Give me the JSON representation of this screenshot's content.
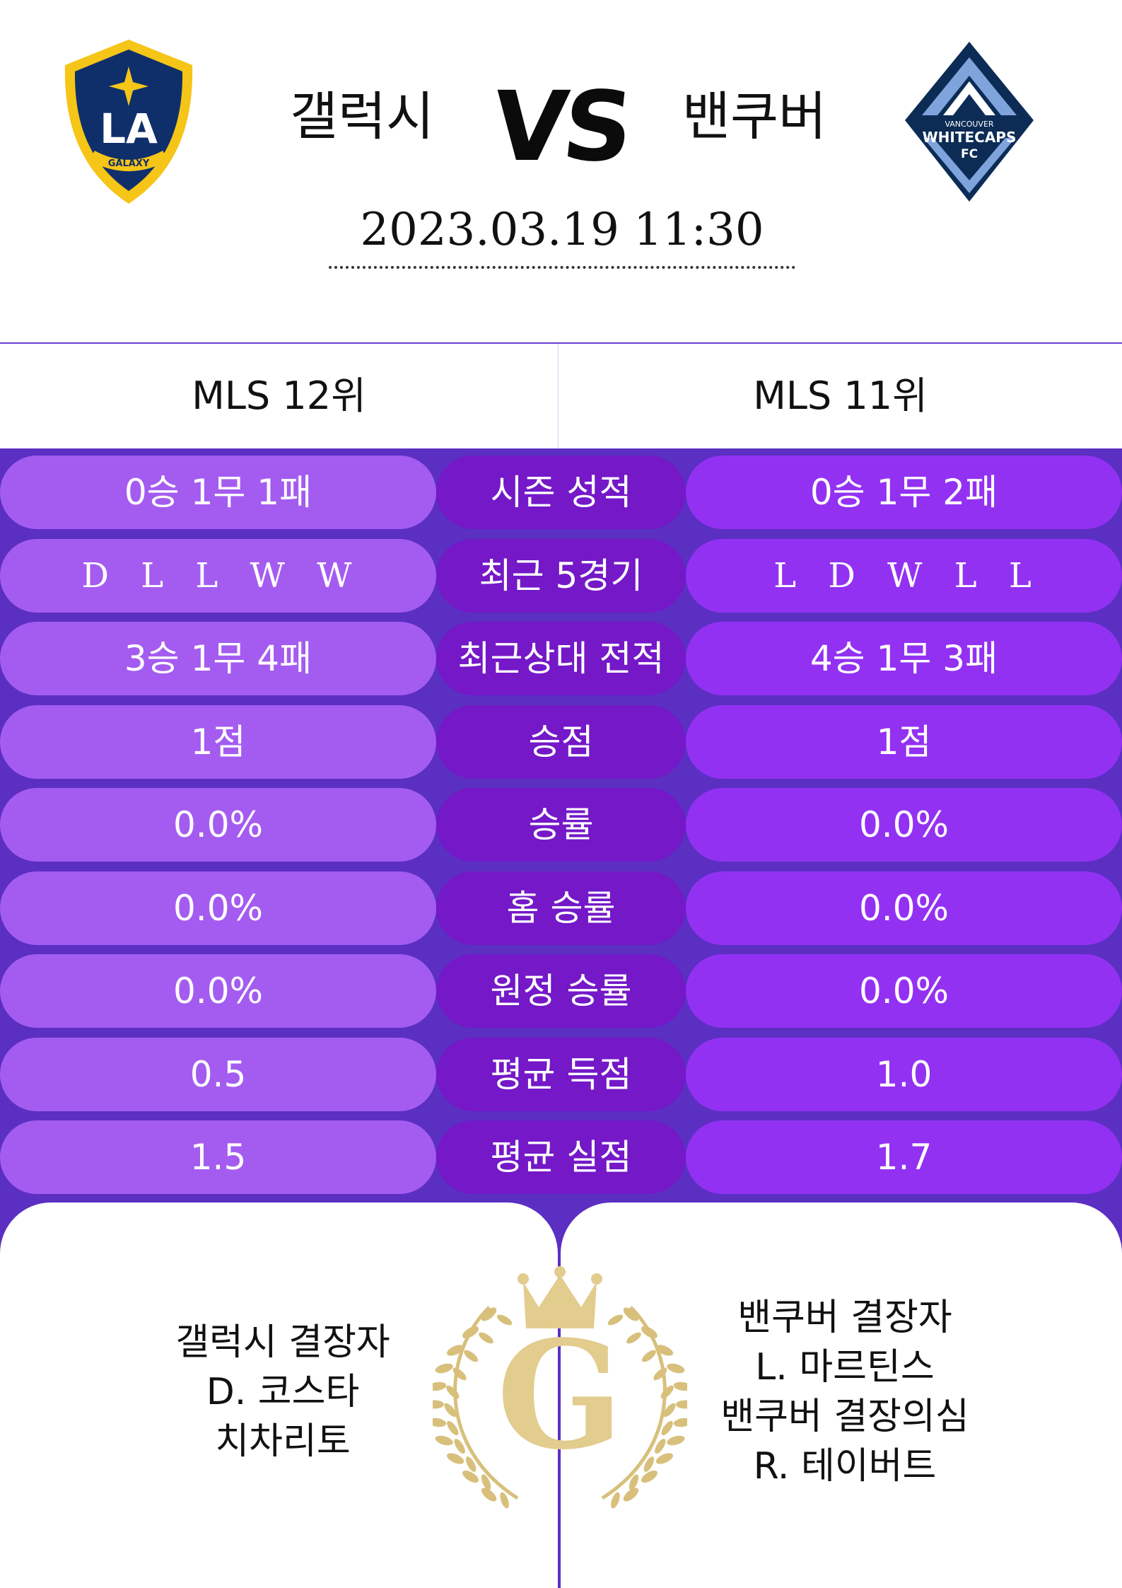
{
  "match": {
    "home_team": "갤럭시",
    "away_team": "밴쿠버",
    "vs_label": "VS",
    "datetime": "2023.03.19  11:30"
  },
  "logos": {
    "home": {
      "letters": "LA",
      "ring_text": "GALAXY",
      "colors": {
        "navy": "#0f2f6b",
        "gold": "#f5c518"
      }
    },
    "away": {
      "text_top": "VANCOUVER",
      "text_mid": "WHITECAPS",
      "text_bottom": "FC",
      "colors": {
        "navy": "#0c2c56",
        "blue": "#7fa4dc"
      }
    }
  },
  "ranks": {
    "home": "MLS 12위",
    "away": "MLS 11위"
  },
  "stats": [
    {
      "label": "시즌 성적",
      "home": "0승 1무 1패",
      "away": "0승 1무 2패"
    },
    {
      "label": "최근 5경기",
      "home": "D L L W W",
      "away": "L D W L L"
    },
    {
      "label": "최근상대 전적",
      "home": "3승 1무 4패",
      "away": "4승 1무 3패"
    },
    {
      "label": "승점",
      "home": "1점",
      "away": "1점"
    },
    {
      "label": "승률",
      "home": "0.0%",
      "away": "0.0%"
    },
    {
      "label": "홈 승률",
      "home": "0.0%",
      "away": "0.0%"
    },
    {
      "label": "원정 승률",
      "home": "0.0%",
      "away": "0.0%"
    },
    {
      "label": "평균 득점",
      "home": "0.5",
      "away": "1.0"
    },
    {
      "label": "평균 실점",
      "home": "1.5",
      "away": "1.7"
    }
  ],
  "absentees": {
    "home": [
      "갤럭시 결장자",
      "D. 코스타",
      "치차리토"
    ],
    "away": [
      "밴쿠버 결장자",
      "L. 마르틴스",
      "밴쿠버 결장의심",
      "R. 테이버트"
    ]
  },
  "emblem": {
    "letter": "G",
    "color": "#e2cc8e"
  },
  "colors": {
    "background": "#5b2fc2",
    "home_pill": "#a45cf0",
    "label_pill": "#7418c8",
    "away_pill": "#9331f3"
  }
}
